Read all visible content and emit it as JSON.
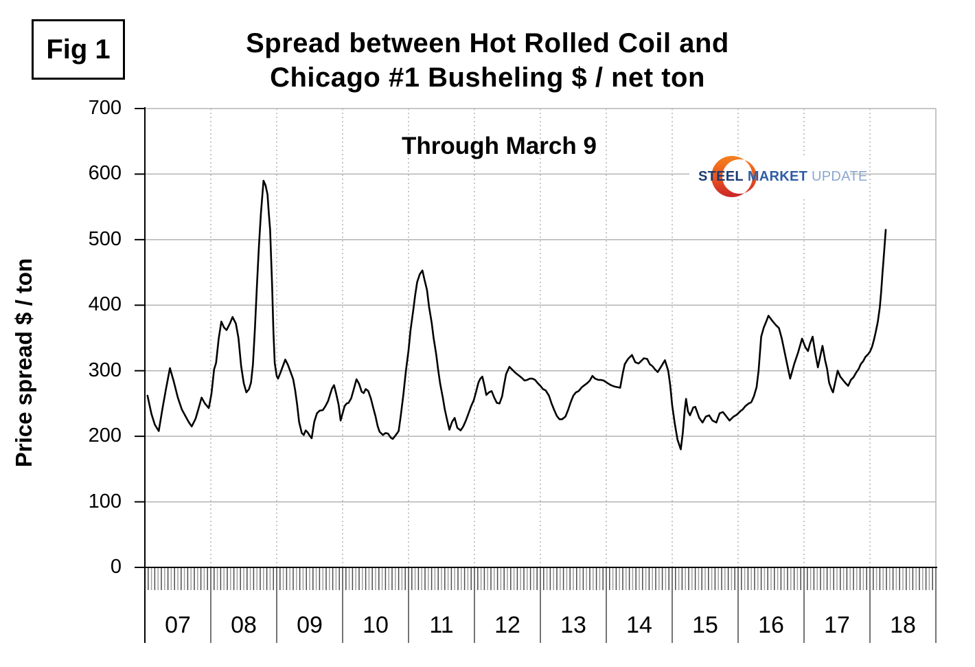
{
  "figure_label": "Fig 1",
  "title": "Spread between Hot Rolled Coil and\nChicago #1 Busheling  $ / net ton",
  "annotation": "Through March 9",
  "y_axis_title": "Price spread $ / ton",
  "logo": {
    "word1": "STEEL",
    "word2": "MARKET",
    "word3": "UPDATE",
    "color_steel": "#1c3a6e",
    "color_market": "#2d5da4",
    "color_update": "#8aa6cf",
    "crescent_orange": "#f58220",
    "crescent_red": "#c9252c"
  },
  "chart_data": {
    "type": "line",
    "title": "Spread between Hot Rolled Coil and Chicago #1 Busheling $ / net ton",
    "subtitle": "Through March 9",
    "ylabel": "Price spread $ / ton",
    "xlabel": "",
    "x_tick_labels": [
      "07",
      "08",
      "09",
      "10",
      "11",
      "12",
      "13",
      "14",
      "15",
      "16",
      "17",
      "18"
    ],
    "y_ticks": [
      0,
      100,
      200,
      300,
      400,
      500,
      600,
      700
    ],
    "ylim": [
      0,
      700
    ],
    "xlim": [
      2007,
      2019
    ],
    "grid": "horizontal solid, vertical dotted at year boundaries",
    "legend": "none",
    "line_color": "#000000",
    "points": [
      [
        2007.04,
        262
      ],
      [
        2007.1,
        234
      ],
      [
        2007.15,
        218
      ],
      [
        2007.21,
        208
      ],
      [
        2007.27,
        244
      ],
      [
        2007.32,
        272
      ],
      [
        2007.38,
        304
      ],
      [
        2007.44,
        283
      ],
      [
        2007.5,
        259
      ],
      [
        2007.56,
        241
      ],
      [
        2007.63,
        228
      ],
      [
        2007.67,
        221
      ],
      [
        2007.71,
        215
      ],
      [
        2007.77,
        227
      ],
      [
        2007.81,
        241
      ],
      [
        2007.86,
        259
      ],
      [
        2007.91,
        250
      ],
      [
        2007.97,
        243
      ],
      [
        2008.01,
        265
      ],
      [
        2008.05,
        302
      ],
      [
        2008.08,
        312
      ],
      [
        2008.12,
        349
      ],
      [
        2008.16,
        375
      ],
      [
        2008.2,
        366
      ],
      [
        2008.24,
        362
      ],
      [
        2008.29,
        372
      ],
      [
        2008.33,
        382
      ],
      [
        2008.38,
        372
      ],
      [
        2008.42,
        350
      ],
      [
        2008.46,
        307
      ],
      [
        2008.5,
        281
      ],
      [
        2008.54,
        267
      ],
      [
        2008.58,
        272
      ],
      [
        2008.61,
        282
      ],
      [
        2008.64,
        310
      ],
      [
        2008.67,
        365
      ],
      [
        2008.7,
        430
      ],
      [
        2008.73,
        490
      ],
      [
        2008.76,
        540
      ],
      [
        2008.8,
        590
      ],
      [
        2008.83,
        583
      ],
      [
        2008.86,
        569
      ],
      [
        2008.88,
        540
      ],
      [
        2008.9,
        515
      ],
      [
        2008.93,
        430
      ],
      [
        2008.95,
        360
      ],
      [
        2008.97,
        312
      ],
      [
        2009.0,
        292
      ],
      [
        2009.02,
        288
      ],
      [
        2009.06,
        298
      ],
      [
        2009.09,
        306
      ],
      [
        2009.13,
        317
      ],
      [
        2009.17,
        309
      ],
      [
        2009.21,
        298
      ],
      [
        2009.25,
        287
      ],
      [
        2009.28,
        270
      ],
      [
        2009.31,
        248
      ],
      [
        2009.34,
        222
      ],
      [
        2009.38,
        205
      ],
      [
        2009.41,
        202
      ],
      [
        2009.44,
        209
      ],
      [
        2009.47,
        206
      ],
      [
        2009.5,
        201
      ],
      [
        2009.53,
        197
      ],
      [
        2009.57,
        222
      ],
      [
        2009.61,
        235
      ],
      [
        2009.65,
        239
      ],
      [
        2009.7,
        240
      ],
      [
        2009.74,
        246
      ],
      [
        2009.78,
        254
      ],
      [
        2009.81,
        264
      ],
      [
        2009.84,
        273
      ],
      [
        2009.87,
        278
      ],
      [
        2009.9,
        266
      ],
      [
        2009.94,
        248
      ],
      [
        2009.97,
        224
      ],
      [
        2010.0,
        235
      ],
      [
        2010.03,
        246
      ],
      [
        2010.06,
        250
      ],
      [
        2010.09,
        251
      ],
      [
        2010.13,
        258
      ],
      [
        2010.17,
        272
      ],
      [
        2010.21,
        287
      ],
      [
        2010.25,
        280
      ],
      [
        2010.29,
        268
      ],
      [
        2010.32,
        266
      ],
      [
        2010.35,
        272
      ],
      [
        2010.39,
        269
      ],
      [
        2010.43,
        257
      ],
      [
        2010.46,
        245
      ],
      [
        2010.5,
        230
      ],
      [
        2010.53,
        216
      ],
      [
        2010.56,
        207
      ],
      [
        2010.61,
        202
      ],
      [
        2010.65,
        205
      ],
      [
        2010.69,
        204
      ],
      [
        2010.73,
        198
      ],
      [
        2010.76,
        196
      ],
      [
        2010.8,
        201
      ],
      [
        2010.85,
        208
      ],
      [
        2010.88,
        230
      ],
      [
        2010.92,
        262
      ],
      [
        2010.96,
        300
      ],
      [
        2011.0,
        331
      ],
      [
        2011.03,
        362
      ],
      [
        2011.07,
        391
      ],
      [
        2011.1,
        415
      ],
      [
        2011.13,
        435
      ],
      [
        2011.17,
        447
      ],
      [
        2011.21,
        453
      ],
      [
        2011.24,
        440
      ],
      [
        2011.28,
        423
      ],
      [
        2011.31,
        398
      ],
      [
        2011.35,
        374
      ],
      [
        2011.38,
        350
      ],
      [
        2011.42,
        325
      ],
      [
        2011.45,
        301
      ],
      [
        2011.48,
        280
      ],
      [
        2011.52,
        259
      ],
      [
        2011.55,
        241
      ],
      [
        2011.58,
        227
      ],
      [
        2011.62,
        210
      ],
      [
        2011.66,
        222
      ],
      [
        2011.7,
        228
      ],
      [
        2011.74,
        213
      ],
      [
        2011.79,
        209
      ],
      [
        2011.83,
        215
      ],
      [
        2011.87,
        224
      ],
      [
        2011.91,
        235
      ],
      [
        2011.95,
        246
      ],
      [
        2011.99,
        255
      ],
      [
        2012.03,
        270
      ],
      [
        2012.06,
        282
      ],
      [
        2012.09,
        288
      ],
      [
        2012.12,
        291
      ],
      [
        2012.15,
        278
      ],
      [
        2012.18,
        263
      ],
      [
        2012.22,
        267
      ],
      [
        2012.26,
        269
      ],
      [
        2012.3,
        259
      ],
      [
        2012.34,
        251
      ],
      [
        2012.38,
        250
      ],
      [
        2012.42,
        261
      ],
      [
        2012.45,
        279
      ],
      [
        2012.48,
        295
      ],
      [
        2012.53,
        306
      ],
      [
        2012.57,
        302
      ],
      [
        2012.62,
        297
      ],
      [
        2012.67,
        293
      ],
      [
        2012.72,
        289
      ],
      [
        2012.76,
        285
      ],
      [
        2012.8,
        286
      ],
      [
        2012.84,
        288
      ],
      [
        2012.88,
        288
      ],
      [
        2012.92,
        286
      ],
      [
        2012.96,
        281
      ],
      [
        2013.0,
        277
      ],
      [
        2013.04,
        272
      ],
      [
        2013.08,
        270
      ],
      [
        2013.13,
        262
      ],
      [
        2013.17,
        250
      ],
      [
        2013.21,
        240
      ],
      [
        2013.25,
        231
      ],
      [
        2013.29,
        226
      ],
      [
        2013.33,
        226
      ],
      [
        2013.38,
        230
      ],
      [
        2013.42,
        240
      ],
      [
        2013.46,
        252
      ],
      [
        2013.5,
        262
      ],
      [
        2013.54,
        267
      ],
      [
        2013.58,
        269
      ],
      [
        2013.63,
        275
      ],
      [
        2013.67,
        278
      ],
      [
        2013.71,
        281
      ],
      [
        2013.75,
        285
      ],
      [
        2013.79,
        292
      ],
      [
        2013.83,
        288
      ],
      [
        2013.88,
        286
      ],
      [
        2013.92,
        286
      ],
      [
        2013.96,
        285
      ],
      [
        2014.02,
        281
      ],
      [
        2014.07,
        278
      ],
      [
        2014.12,
        276
      ],
      [
        2014.17,
        275
      ],
      [
        2014.21,
        274
      ],
      [
        2014.25,
        296
      ],
      [
        2014.28,
        310
      ],
      [
        2014.33,
        318
      ],
      [
        2014.39,
        324
      ],
      [
        2014.44,
        313
      ],
      [
        2014.49,
        311
      ],
      [
        2014.53,
        315
      ],
      [
        2014.57,
        319
      ],
      [
        2014.62,
        318
      ],
      [
        2014.66,
        310
      ],
      [
        2014.7,
        307
      ],
      [
        2014.74,
        302
      ],
      [
        2014.78,
        298
      ],
      [
        2014.83,
        306
      ],
      [
        2014.89,
        316
      ],
      [
        2014.94,
        300
      ],
      [
        2014.97,
        278
      ],
      [
        2015.0,
        247
      ],
      [
        2015.04,
        219
      ],
      [
        2015.08,
        195
      ],
      [
        2015.13,
        180
      ],
      [
        2015.16,
        205
      ],
      [
        2015.19,
        240
      ],
      [
        2015.21,
        257
      ],
      [
        2015.24,
        238
      ],
      [
        2015.27,
        232
      ],
      [
        2015.32,
        244
      ],
      [
        2015.35,
        245
      ],
      [
        2015.41,
        228
      ],
      [
        2015.46,
        221
      ],
      [
        2015.51,
        230
      ],
      [
        2015.56,
        232
      ],
      [
        2015.61,
        224
      ],
      [
        2015.67,
        221
      ],
      [
        2015.72,
        235
      ],
      [
        2015.77,
        237
      ],
      [
        2015.84,
        228
      ],
      [
        2015.87,
        224
      ],
      [
        2015.93,
        230
      ],
      [
        2015.98,
        233
      ],
      [
        2016.03,
        238
      ],
      [
        2016.07,
        241
      ],
      [
        2016.11,
        246
      ],
      [
        2016.16,
        250
      ],
      [
        2016.2,
        252
      ],
      [
        2016.24,
        261
      ],
      [
        2016.28,
        275
      ],
      [
        2016.31,
        300
      ],
      [
        2016.35,
        352
      ],
      [
        2016.39,
        366
      ],
      [
        2016.43,
        376
      ],
      [
        2016.46,
        384
      ],
      [
        2016.52,
        376
      ],
      [
        2016.57,
        370
      ],
      [
        2016.62,
        365
      ],
      [
        2016.66,
        350
      ],
      [
        2016.7,
        331
      ],
      [
        2016.74,
        312
      ],
      [
        2016.79,
        288
      ],
      [
        2016.85,
        310
      ],
      [
        2016.91,
        328
      ],
      [
        2016.97,
        349
      ],
      [
        2017.02,
        336
      ],
      [
        2017.06,
        330
      ],
      [
        2017.09,
        341
      ],
      [
        2017.13,
        352
      ],
      [
        2017.17,
        327
      ],
      [
        2017.21,
        305
      ],
      [
        2017.25,
        324
      ],
      [
        2017.28,
        338
      ],
      [
        2017.32,
        316
      ],
      [
        2017.35,
        303
      ],
      [
        2017.38,
        282
      ],
      [
        2017.42,
        271
      ],
      [
        2017.44,
        267
      ],
      [
        2017.48,
        286
      ],
      [
        2017.51,
        300
      ],
      [
        2017.55,
        291
      ],
      [
        2017.59,
        286
      ],
      [
        2017.63,
        281
      ],
      [
        2017.67,
        277
      ],
      [
        2017.71,
        286
      ],
      [
        2017.75,
        290
      ],
      [
        2017.79,
        297
      ],
      [
        2017.83,
        303
      ],
      [
        2017.86,
        310
      ],
      [
        2017.9,
        315
      ],
      [
        2017.93,
        321
      ],
      [
        2017.97,
        325
      ],
      [
        2018.0,
        329
      ],
      [
        2018.03,
        336
      ],
      [
        2018.06,
        347
      ],
      [
        2018.09,
        360
      ],
      [
        2018.12,
        375
      ],
      [
        2018.15,
        397
      ],
      [
        2018.17,
        420
      ],
      [
        2018.19,
        448
      ],
      [
        2018.21,
        475
      ],
      [
        2018.23,
        502
      ],
      [
        2018.24,
        515
      ]
    ]
  }
}
